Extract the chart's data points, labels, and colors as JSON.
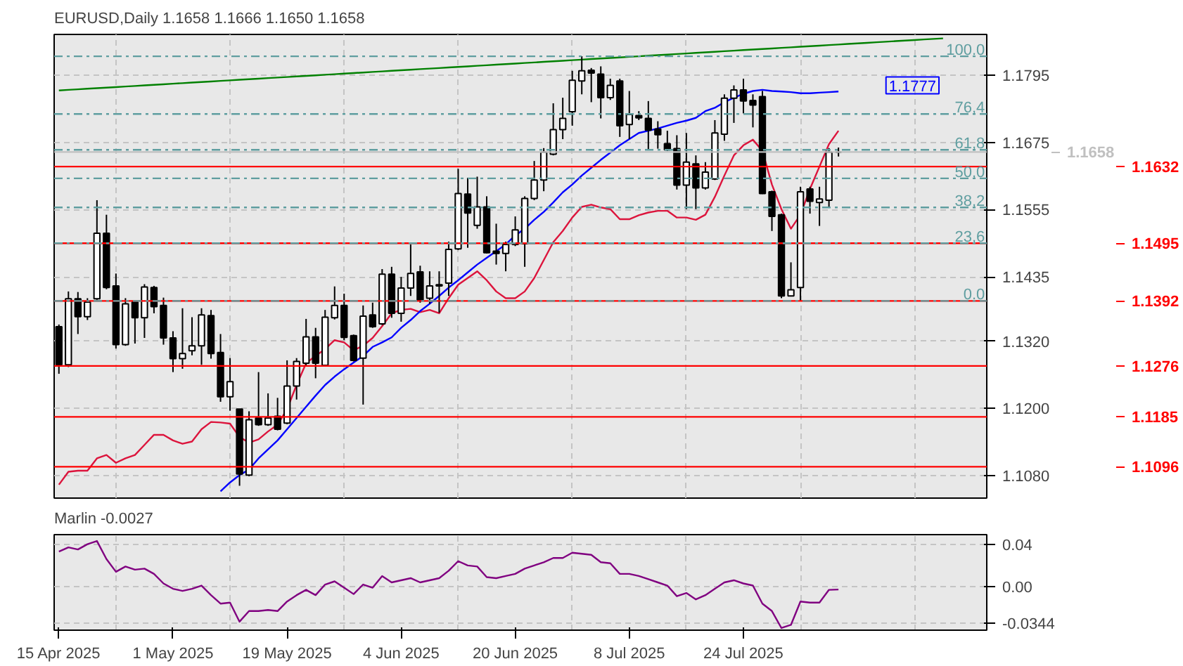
{
  "chart_data": [
    {
      "type": "candlestick",
      "title": "EURUSD,Daily  1.1658 1.1666 1.1650 1.1658",
      "categories": [
        null,
        null,
        null,
        null,
        null,
        null,
        null,
        null,
        null,
        null,
        null,
        null,
        null,
        null,
        null,
        null,
        null,
        null,
        null,
        null,
        null,
        null,
        null,
        null,
        null,
        null,
        null,
        null,
        null,
        null,
        null,
        null,
        null,
        null,
        null,
        null,
        null,
        null,
        null,
        null,
        null,
        null,
        null,
        null,
        null,
        null,
        null,
        null,
        null,
        null,
        null,
        null,
        null,
        null,
        null,
        null,
        null,
        null,
        null,
        null,
        null,
        null,
        null,
        null,
        null,
        null,
        null,
        null,
        null,
        null,
        null,
        null,
        null,
        null,
        null,
        null,
        null,
        null,
        null,
        null,
        null,
        null,
        null,
        null,
        null,
        null,
        null,
        null,
        null,
        null,
        null,
        null,
        null,
        null,
        null,
        null,
        null,
        null
      ],
      "ohlc": [
        [
          1.1346,
          1.135,
          1.1262,
          1.1278
        ],
        [
          1.1278,
          1.1409,
          1.1274,
          1.1396
        ],
        [
          1.1396,
          1.1408,
          1.1333,
          1.1364
        ],
        [
          1.1364,
          1.1397,
          1.1358,
          1.139
        ],
        [
          1.1396,
          1.1572,
          1.1394,
          1.1513
        ],
        [
          1.1513,
          1.1546,
          1.1413,
          1.1416
        ],
        [
          1.1419,
          1.1441,
          1.1307,
          1.1314
        ],
        [
          1.1314,
          1.1397,
          1.1312,
          1.1387
        ],
        [
          1.139,
          1.1392,
          1.1316,
          1.1362
        ],
        [
          1.1362,
          1.1422,
          1.1326,
          1.1417
        ],
        [
          1.1416,
          1.1419,
          1.137,
          1.1382
        ],
        [
          1.1384,
          1.1398,
          1.1314,
          1.1326
        ],
        [
          1.1326,
          1.1338,
          1.1265,
          1.1289
        ],
        [
          1.1289,
          1.1379,
          1.1271,
          1.1298
        ],
        [
          1.1303,
          1.1363,
          1.1295,
          1.1312
        ],
        [
          1.1312,
          1.1379,
          1.1278,
          1.1367
        ],
        [
          1.1366,
          1.1376,
          1.1289,
          1.1298
        ],
        [
          1.13,
          1.1333,
          1.1212,
          1.1221
        ],
        [
          1.1221,
          1.129,
          1.1196,
          1.1248
        ],
        [
          1.1199,
          1.1199,
          1.1062,
          1.1083
        ],
        [
          1.1081,
          1.1195,
          1.1079,
          1.118
        ],
        [
          1.1183,
          1.1265,
          1.1169,
          1.1171
        ],
        [
          1.1171,
          1.1227,
          1.1169,
          1.1183
        ],
        [
          1.1186,
          1.1219,
          1.1161,
          1.1163
        ],
        [
          1.1174,
          1.1286,
          1.1172,
          1.124
        ],
        [
          1.124,
          1.129,
          1.1216,
          1.1284
        ],
        [
          1.1281,
          1.136,
          1.1277,
          1.1328
        ],
        [
          1.1328,
          1.1344,
          1.1254,
          1.1281
        ],
        [
          1.1277,
          1.1376,
          1.1275,
          1.1363
        ],
        [
          1.1362,
          1.1418,
          1.1359,
          1.1384
        ],
        [
          1.1384,
          1.1405,
          1.1322,
          1.1327
        ],
        [
          1.133,
          1.1332,
          1.1284,
          1.1286
        ],
        [
          1.129,
          1.1384,
          1.1207,
          1.1365
        ],
        [
          1.1367,
          1.1389,
          1.1344,
          1.1346
        ],
        [
          1.1351,
          1.1449,
          1.1349,
          1.144
        ],
        [
          1.144,
          1.1453,
          1.1362,
          1.137
        ],
        [
          1.137,
          1.1435,
          1.1355,
          1.1415
        ],
        [
          1.1415,
          1.1493,
          1.1401,
          1.1441
        ],
        [
          1.1444,
          1.1455,
          1.1389,
          1.1393
        ],
        [
          1.1397,
          1.1445,
          1.1387,
          1.1419
        ],
        [
          1.1421,
          1.1445,
          1.1371,
          1.1419
        ],
        [
          1.1424,
          1.1498,
          1.1401,
          1.1484
        ],
        [
          1.1485,
          1.1628,
          1.1483,
          1.1584
        ],
        [
          1.1583,
          1.1612,
          1.1487,
          1.1549
        ],
        [
          1.1527,
          1.1614,
          1.1521,
          1.156
        ],
        [
          1.156,
          1.1579,
          1.1477,
          1.1478
        ],
        [
          1.1481,
          1.153,
          1.1457,
          1.1477
        ],
        [
          1.1477,
          1.1498,
          1.1445,
          1.1493
        ],
        [
          1.1493,
          1.1543,
          1.149,
          1.1519
        ],
        [
          1.1494,
          1.1579,
          1.1453,
          1.1575
        ],
        [
          1.1575,
          1.1642,
          1.1572,
          1.1608
        ],
        [
          1.1608,
          1.1665,
          1.1588,
          1.1658
        ],
        [
          1.1654,
          1.1745,
          1.1652,
          1.1698
        ],
        [
          1.1698,
          1.1755,
          1.1681,
          1.1718
        ],
        [
          1.173,
          1.1803,
          1.1705,
          1.1786
        ],
        [
          1.1785,
          1.1829,
          1.1761,
          1.1803
        ],
        [
          1.1804,
          1.1808,
          1.1747,
          1.1799
        ],
        [
          1.1797,
          1.1811,
          1.1718,
          1.1755
        ],
        [
          1.1755,
          1.1789,
          1.1751,
          1.1777
        ],
        [
          1.1785,
          1.1789,
          1.1685,
          1.1705
        ],
        [
          1.1707,
          1.1767,
          1.1681,
          1.1725
        ],
        [
          1.1723,
          1.1731,
          1.1715,
          1.1719
        ],
        [
          1.1718,
          1.1749,
          1.1662,
          1.1697
        ],
        [
          1.1699,
          1.1713,
          1.1664,
          1.1689
        ],
        [
          1.1673,
          1.1696,
          1.166,
          1.1662
        ],
        [
          1.1664,
          1.1688,
          1.1591,
          1.1599
        ],
        [
          1.1599,
          1.1692,
          1.1556,
          1.164
        ],
        [
          1.1637,
          1.1652,
          1.1556,
          1.1594
        ],
        [
          1.1594,
          1.164,
          1.1591,
          1.1622
        ],
        [
          1.161,
          1.1715,
          1.1608,
          1.1692
        ],
        [
          1.169,
          1.1761,
          1.1678,
          1.1754
        ],
        [
          1.1754,
          1.1777,
          1.171,
          1.1769
        ],
        [
          1.1769,
          1.1789,
          1.1727,
          1.1749
        ],
        [
          1.175,
          1.1761,
          1.1702,
          1.1742
        ],
        [
          1.1757,
          1.1767,
          1.1583,
          1.1584
        ],
        [
          1.1587,
          1.1589,
          1.1517,
          1.1543
        ],
        [
          1.1546,
          1.1548,
          1.1397,
          1.1401
        ],
        [
          1.1401,
          1.1461,
          1.14,
          1.1412
        ],
        [
          1.1416,
          1.1596,
          1.1392,
          1.1587
        ],
        [
          1.1592,
          1.1596,
          1.1548,
          1.157
        ],
        [
          1.1568,
          1.1596,
          1.1526,
          1.1574
        ],
        [
          1.1572,
          1.1665,
          1.156,
          1.1658
        ],
        [
          1.1658,
          1.1666,
          1.165,
          1.1658
        ],
        null,
        null,
        null,
        null,
        null,
        null,
        null,
        null,
        null,
        null,
        null,
        null,
        null,
        null,
        null
      ],
      "series": [
        {
          "type": "line",
          "color": "#dc143c",
          "values": [
            1.1064,
            1.1087,
            1.1089,
            1.1089,
            1.1111,
            1.1117,
            1.1103,
            1.1111,
            1.1117,
            1.1135,
            1.1153,
            1.1153,
            1.1143,
            1.1137,
            1.1141,
            1.1163,
            1.1176,
            1.1175,
            1.1173,
            1.1149,
            1.1139,
            1.1145,
            1.1159,
            1.1171,
            1.1199,
            1.1242,
            1.1281,
            1.1294,
            1.1306,
            1.1322,
            1.1318,
            1.1304,
            1.1312,
            1.1326,
            1.1347,
            1.137,
            1.1376,
            1.1378,
            1.1372,
            1.1376,
            1.137,
            1.1397,
            1.1421,
            1.1433,
            1.1445,
            1.1429,
            1.1409,
            1.1397,
            1.1397,
            1.1409,
            1.1433,
            1.1465,
            1.1497,
            1.1517,
            1.1541,
            1.156,
            1.1564,
            1.1559,
            1.1556,
            1.1538,
            1.1538,
            1.1545,
            1.155,
            1.1553,
            1.1553,
            1.1541,
            1.1541,
            1.1537,
            1.1546,
            1.1578,
            1.1616,
            1.1652,
            1.167,
            1.168,
            1.166,
            1.16,
            1.1556,
            1.1521,
            1.1546,
            1.1592,
            1.1632,
            1.1672,
            1.1696,
            null,
            null,
            null,
            null,
            null,
            null,
            null,
            null,
            null,
            null,
            null,
            null,
            null,
            null,
            null
          ]
        },
        {
          "type": "line",
          "color": "#0000ff",
          "values": [
            null,
            null,
            null,
            null,
            null,
            null,
            null,
            null,
            null,
            null,
            null,
            null,
            null,
            null,
            null,
            null,
            null,
            1.1052,
            1.1068,
            1.1081,
            1.1091,
            1.1111,
            1.1127,
            1.1143,
            1.1163,
            1.1183,
            1.1203,
            1.1223,
            1.1242,
            1.1257,
            1.127,
            1.1282,
            1.1294,
            1.131,
            1.1318,
            1.1327,
            1.1344,
            1.1358,
            1.1374,
            1.1387,
            1.1401,
            1.1416,
            1.1429,
            1.1443,
            1.1457,
            1.1469,
            1.1481,
            1.1493,
            1.1509,
            1.1521,
            1.1537,
            1.1551,
            1.1568,
            1.1586,
            1.16,
            1.1616,
            1.163,
            1.1644,
            1.1657,
            1.167,
            1.1681,
            1.1692,
            1.1696,
            1.17,
            1.1705,
            1.171,
            1.1714,
            1.1719,
            1.1731,
            1.1737,
            1.1747,
            1.1755,
            1.1762,
            1.1767,
            1.1769,
            1.1767,
            1.1766,
            1.1765,
            1.1763,
            1.1763,
            1.1764,
            1.1765,
            1.1766,
            null,
            null,
            null,
            null,
            null,
            null,
            null,
            null,
            null,
            null,
            null,
            null,
            null,
            null,
            null
          ]
        },
        {
          "type": "line",
          "color": "#008000",
          "values": [
            1.1768,
            1.1769,
            1.177,
            1.1771,
            1.1772,
            1.1773,
            1.1774,
            1.1775,
            1.1776,
            1.1777,
            1.1778,
            1.1779,
            1.178,
            1.1781,
            1.1782,
            1.1783,
            1.1784,
            1.1785,
            1.1786,
            1.1787,
            1.1788,
            1.1789,
            1.179,
            1.1791,
            1.1792,
            1.1793,
            1.1794,
            1.1795,
            1.1796,
            1.1797,
            1.1798,
            1.1799,
            1.18,
            1.1801,
            1.1802,
            1.1803,
            1.1804,
            1.1805,
            1.1806,
            1.1807,
            1.1808,
            1.1809,
            1.181,
            1.1811,
            1.1812,
            1.1813,
            1.1814,
            1.1815,
            1.1816,
            1.1817,
            1.1818,
            1.1819,
            1.182,
            1.1821,
            1.1822,
            1.1823,
            1.1824,
            1.1825,
            1.1826,
            1.1827,
            1.1828,
            1.1829,
            1.183,
            1.1831,
            1.1832,
            1.1833,
            1.1834,
            1.1835,
            1.1836,
            1.1837,
            1.1838,
            1.1839,
            1.184,
            1.1841,
            1.1842,
            1.1843,
            1.1844,
            1.1845,
            1.1846,
            1.1847,
            1.1848,
            1.1849,
            1.185,
            1.1851,
            1.1852,
            1.1853,
            1.1854,
            1.1855,
            1.1856,
            1.1857,
            1.1858,
            1.1859,
            1.186,
            1.1861,
            null,
            null,
            null,
            null
          ]
        }
      ],
      "ylim": [
        1.104,
        1.1868
      ],
      "yticks": [
        {
          "value": 1.1795,
          "label": "1.1795"
        },
        {
          "value": 1.1675,
          "label": "1.1675"
        },
        {
          "value": 1.1555,
          "label": "1.1555"
        },
        {
          "value": 1.1435,
          "label": "1.1435"
        },
        {
          "value": 1.132,
          "label": "1.1320"
        },
        {
          "value": 1.12,
          "label": "1.1200"
        },
        {
          "value": 1.108,
          "label": "1.1080"
        }
      ],
      "ref_lines": [
        {
          "axis": "y",
          "value": 1.1658,
          "label": "1.1658",
          "color": "#c0c0c0"
        },
        {
          "axis": "y",
          "value": 1.1632,
          "label": "1.1632",
          "color": "#ff0000"
        },
        {
          "axis": "y",
          "value": 1.1495,
          "label": "1.1495",
          "color": "#ff0000"
        },
        {
          "axis": "y",
          "value": 1.1392,
          "label": "1.1392",
          "color": "#ff0000"
        },
        {
          "axis": "y",
          "value": 1.1276,
          "label": "1.1276",
          "color": "#ff0000"
        },
        {
          "axis": "y",
          "value": 1.1185,
          "label": "1.1185",
          "color": "#ff0000"
        },
        {
          "axis": "y",
          "value": 1.1096,
          "label": "1.1096",
          "color": "#ff0000"
        },
        {
          "axis": "y",
          "value": 1.1829,
          "color": "#5f9ea0",
          "line_style": "dashed"
        },
        {
          "axis": "y",
          "value": 1.1726,
          "color": "#5f9ea0",
          "line_style": "dashed"
        },
        {
          "axis": "y",
          "value": 1.1662,
          "color": "#5f9ea0",
          "line_style": "dashed"
        },
        {
          "axis": "y",
          "value": 1.1611,
          "color": "#5f9ea0",
          "line_style": "dashed"
        },
        {
          "axis": "y",
          "value": 1.1559,
          "color": "#5f9ea0",
          "line_style": "dashed"
        },
        {
          "axis": "y",
          "value": 1.1495,
          "color": "#5f9ea0",
          "line_style": "dashed"
        },
        {
          "axis": "y",
          "value": 1.1392,
          "color": "#5f9ea0",
          "line_style": "dashed"
        }
      ],
      "annotations": [
        {
          "text": "1.1777",
          "y": 1.1777
        },
        {
          "text": "100.0",
          "y": 1.1829
        },
        {
          "text": "76,4",
          "y": 1.1726
        },
        {
          "text": "61,8",
          "y": 1.1662
        },
        {
          "text": "50,0",
          "y": 1.1611
        },
        {
          "text": "38,2",
          "y": 1.1559
        },
        {
          "text": "23,6",
          "y": 1.1495
        },
        {
          "text": "0.0",
          "y": 1.1392
        }
      ],
      "grid": true,
      "tick_labels": "y"
    },
    {
      "type": "line",
      "title": "Marlin -0.0027",
      "categories": [
        "15 Apr 2025",
        null,
        null,
        null,
        null,
        null,
        null,
        null,
        null,
        null,
        null,
        null,
        "1 May 2025",
        null,
        null,
        null,
        null,
        null,
        null,
        null,
        null,
        null,
        null,
        null,
        "19 May 2025",
        null,
        null,
        null,
        null,
        null,
        null,
        null,
        null,
        null,
        null,
        null,
        "4 Jun 2025",
        null,
        null,
        null,
        null,
        null,
        null,
        null,
        null,
        null,
        null,
        null,
        "20 Jun 2025",
        null,
        null,
        null,
        null,
        null,
        null,
        null,
        null,
        null,
        null,
        null,
        "8 Jul 2025",
        null,
        null,
        null,
        null,
        null,
        null,
        null,
        null,
        null,
        null,
        null,
        "24 Jul 2025",
        null,
        null,
        null,
        null,
        null,
        null,
        null,
        null,
        null,
        null,
        null,
        null,
        null,
        null,
        null,
        null,
        null,
        null,
        null,
        null,
        null,
        null,
        null,
        null,
        null
      ],
      "series": [
        {
          "color": "#800080",
          "values": [
            0.033,
            0.037,
            0.035,
            0.04,
            0.043,
            0.026,
            0.014,
            0.019,
            0.016,
            0.017,
            0.012,
            0.003,
            -0.002,
            -0.004,
            -0.002,
            0.001,
            -0.008,
            -0.016,
            -0.015,
            -0.033,
            -0.023,
            -0.023,
            -0.022,
            -0.023,
            -0.014,
            -0.008,
            -0.003,
            -0.008,
            0.002,
            0.005,
            -0.001,
            -0.007,
            0.002,
            -0.001,
            0.01,
            0.004,
            0.006,
            0.008,
            0.004,
            0.006,
            0.008,
            0.015,
            0.024,
            0.02,
            0.019,
            0.009,
            0.008,
            0.01,
            0.012,
            0.017,
            0.02,
            0.023,
            0.027,
            0.027,
            0.032,
            0.031,
            0.03,
            0.023,
            0.022,
            0.012,
            0.012,
            0.01,
            0.007,
            0.004,
            0.001,
            -0.009,
            -0.006,
            -0.012,
            -0.008,
            -0.002,
            0.004,
            0.006,
            0.003,
            0.001,
            -0.016,
            -0.023,
            -0.039,
            -0.036,
            -0.014,
            -0.015,
            -0.015,
            -0.003,
            -0.0027,
            null,
            null,
            null,
            null,
            null,
            null,
            null,
            null,
            null,
            null,
            null,
            null,
            null,
            null,
            null
          ]
        }
      ],
      "ylim": [
        -0.041,
        0.049
      ],
      "yticks": [
        0.04,
        {
          "value": 0,
          "label": "0.00"
        },
        {
          "value": -0.0344,
          "label": "-0.0344"
        }
      ],
      "grid": true
    }
  ]
}
